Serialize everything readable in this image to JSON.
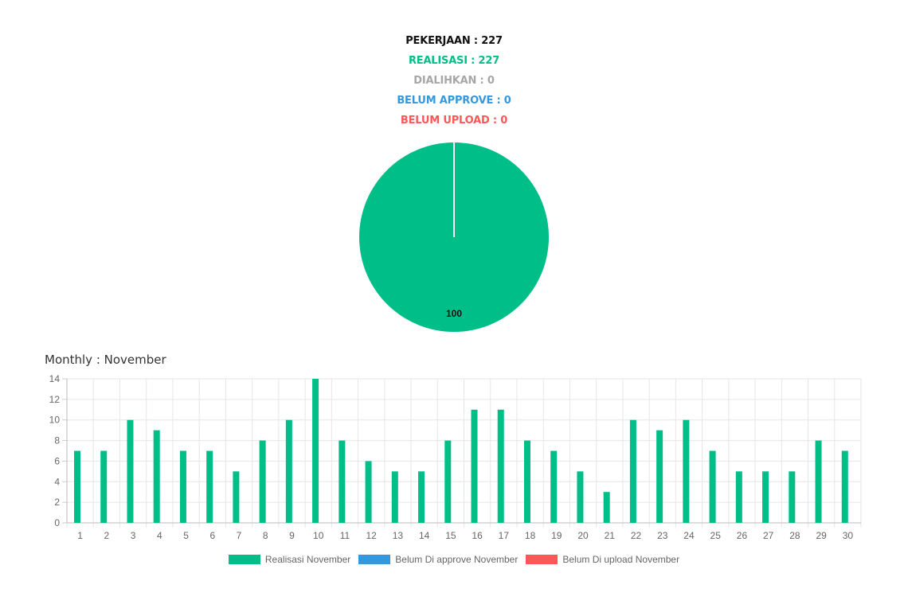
{
  "summary": {
    "pekerjaan": "PEKERJAAN : 227",
    "realisasi": "REALISASI : 227",
    "dialihkan": "DIALIHKAN : 0",
    "belum_approve": "BELUM APPROVE : 0",
    "belum_upload": "BELUM UPLOAD : 0"
  },
  "colors": {
    "realisasi": "#00be88",
    "belum_approve": "#3598dc",
    "belum_upload": "#ff5757",
    "dialihkan": "#a6a6a6",
    "pekerjaan": "#111111"
  },
  "monthly_title": "Monthly : November",
  "chart_data": [
    {
      "type": "pie",
      "slices": [
        {
          "label": "Realisasi",
          "value": 100,
          "color": "#00be88"
        },
        {
          "label": "Dialihkan",
          "value": 0,
          "color": "#a6a6a6"
        }
      ],
      "data_label": "100"
    },
    {
      "type": "bar",
      "categories": [
        "1",
        "2",
        "3",
        "4",
        "5",
        "6",
        "7",
        "8",
        "9",
        "10",
        "11",
        "12",
        "13",
        "14",
        "15",
        "16",
        "17",
        "18",
        "19",
        "20",
        "21",
        "22",
        "23",
        "24",
        "25",
        "26",
        "27",
        "28",
        "29",
        "30"
      ],
      "series": [
        {
          "name": "Realisasi November",
          "color": "#00be88",
          "values": [
            7,
            7,
            10,
            9,
            7,
            7,
            5,
            8,
            10,
            14,
            8,
            6,
            5,
            5,
            8,
            11,
            11,
            8,
            7,
            5,
            3,
            10,
            9,
            10,
            7,
            5,
            5,
            5,
            8,
            7
          ]
        },
        {
          "name": "Belum Di approve November",
          "color": "#3598dc",
          "values": [
            0,
            0,
            0,
            0,
            0,
            0,
            0,
            0,
            0,
            0,
            0,
            0,
            0,
            0,
            0,
            0,
            0,
            0,
            0,
            0,
            0,
            0,
            0,
            0,
            0,
            0,
            0,
            0,
            0,
            0
          ]
        },
        {
          "name": "Belum Di upload November",
          "color": "#ff5757",
          "values": [
            0,
            0,
            0,
            0,
            0,
            0,
            0,
            0,
            0,
            0,
            0,
            0,
            0,
            0,
            0,
            0,
            0,
            0,
            0,
            0,
            0,
            0,
            0,
            0,
            0,
            0,
            0,
            0,
            0,
            0
          ]
        }
      ],
      "yticks": [
        0,
        2,
        4,
        6,
        8,
        10,
        12,
        14
      ],
      "ylim": [
        0,
        14
      ],
      "grid": true,
      "legend_position": "bottom"
    }
  ]
}
